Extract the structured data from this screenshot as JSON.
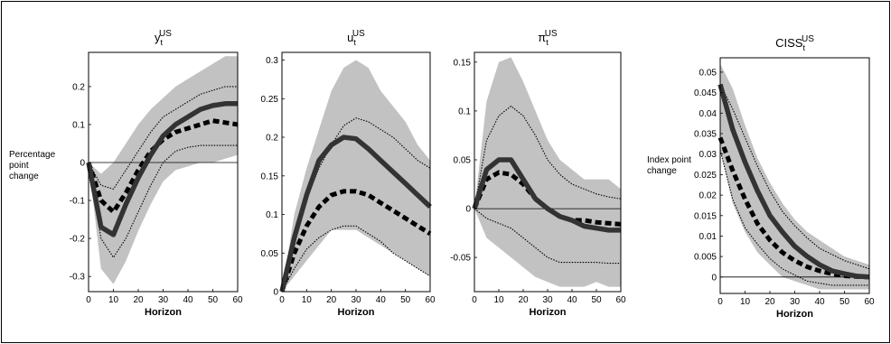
{
  "panel_ylabels": {
    "left": [
      "Percentage",
      "point",
      "change"
    ],
    "right": [
      "Index point",
      "change"
    ]
  },
  "chart_data": [
    {
      "type": "line",
      "title": "y",
      "title_sup": "US",
      "title_sub": "t",
      "xlabel": "Horizon",
      "ylabel": "Percentage point change",
      "xlim": [
        0,
        60
      ],
      "ylim": [
        -0.34,
        0.29
      ],
      "xticks": [
        0,
        10,
        20,
        30,
        40,
        50,
        60
      ],
      "yticks": [
        -0.3,
        -0.2,
        -0.1,
        0,
        0.1,
        0.2
      ],
      "yticklabels": [
        "-0.3",
        "-0.2",
        "-0.1",
        "0",
        "0.1",
        "0.2"
      ],
      "zero_line": true,
      "x": [
        0,
        5,
        10,
        15,
        20,
        25,
        30,
        35,
        40,
        45,
        50,
        55,
        60
      ],
      "series": [
        {
          "role": "band_upper",
          "values": [
            0,
            -0.03,
            0.0,
            0.05,
            0.1,
            0.14,
            0.17,
            0.2,
            0.22,
            0.24,
            0.26,
            0.28,
            0.28
          ]
        },
        {
          "role": "band_lower",
          "values": [
            0,
            -0.28,
            -0.32,
            -0.26,
            -0.18,
            -0.11,
            -0.05,
            -0.02,
            -0.01,
            0.0,
            0.0,
            0.01,
            0.02
          ]
        },
        {
          "role": "ci_upper",
          "values": [
            0,
            -0.06,
            -0.07,
            -0.02,
            0.03,
            0.08,
            0.12,
            0.14,
            0.16,
            0.18,
            0.19,
            0.2,
            0.2
          ]
        },
        {
          "role": "ci_lower",
          "values": [
            0,
            -0.2,
            -0.25,
            -0.2,
            -0.13,
            -0.06,
            0.0,
            0.03,
            0.04,
            0.045,
            0.045,
            0.045,
            0.045
          ]
        },
        {
          "role": "median",
          "values": [
            0,
            -0.17,
            -0.19,
            -0.11,
            -0.04,
            0.02,
            0.07,
            0.1,
            0.12,
            0.14,
            0.15,
            0.155,
            0.155
          ]
        },
        {
          "role": "alt",
          "values": [
            0,
            -0.1,
            -0.13,
            -0.08,
            -0.02,
            0.03,
            0.06,
            0.08,
            0.09,
            0.1,
            0.11,
            0.105,
            0.1
          ]
        }
      ]
    },
    {
      "type": "line",
      "title": "u",
      "title_sup": "US",
      "title_sub": "t",
      "xlabel": "Horizon",
      "ylabel": "",
      "xlim": [
        0,
        60
      ],
      "ylim": [
        0,
        0.31
      ],
      "xticks": [
        0,
        10,
        20,
        30,
        40,
        50,
        60
      ],
      "yticks": [
        0,
        0.05,
        0.1,
        0.15,
        0.2,
        0.25,
        0.3
      ],
      "yticklabels": [
        "0",
        "0.05",
        "0.1",
        "0.15",
        "0.2",
        "0.25",
        "0.3"
      ],
      "zero_line": false,
      "x": [
        0,
        5,
        10,
        15,
        20,
        25,
        30,
        35,
        40,
        45,
        50,
        55,
        60
      ],
      "series": [
        {
          "role": "band_upper",
          "values": [
            0,
            0.1,
            0.16,
            0.21,
            0.26,
            0.29,
            0.3,
            0.29,
            0.26,
            0.24,
            0.22,
            0.19,
            0.17
          ]
        },
        {
          "role": "band_lower",
          "values": [
            0,
            0.02,
            0.04,
            0.06,
            0.08,
            0.08,
            0.08,
            0.07,
            0.06,
            0.05,
            0.04,
            0.03,
            0.02
          ]
        },
        {
          "role": "ci_upper",
          "values": [
            0,
            0.07,
            0.12,
            0.16,
            0.19,
            0.215,
            0.225,
            0.22,
            0.21,
            0.2,
            0.185,
            0.17,
            0.16
          ]
        },
        {
          "role": "ci_lower",
          "values": [
            0,
            0.03,
            0.055,
            0.07,
            0.08,
            0.085,
            0.085,
            0.075,
            0.065,
            0.05,
            0.04,
            0.03,
            0.02
          ]
        },
        {
          "role": "median",
          "values": [
            0,
            0.07,
            0.125,
            0.17,
            0.19,
            0.2,
            0.198,
            0.185,
            0.17,
            0.155,
            0.14,
            0.125,
            0.11
          ]
        },
        {
          "role": "alt",
          "values": [
            0,
            0.05,
            0.085,
            0.11,
            0.125,
            0.13,
            0.13,
            0.125,
            0.115,
            0.105,
            0.095,
            0.085,
            0.075
          ]
        }
      ]
    },
    {
      "type": "line",
      "title": "π",
      "title_sup": "US",
      "title_sub": "t",
      "xlabel": "Horizon",
      "ylabel": "",
      "xlim": [
        0,
        60
      ],
      "ylim": [
        -0.085,
        0.16
      ],
      "xticks": [
        0,
        10,
        20,
        30,
        40,
        50,
        60
      ],
      "yticks": [
        -0.05,
        0,
        0.05,
        0.1,
        0.15
      ],
      "yticklabels": [
        "-0.05",
        "0",
        "0.05",
        "0.1",
        "0.15"
      ],
      "zero_line": true,
      "x": [
        0,
        5,
        10,
        15,
        20,
        25,
        30,
        35,
        40,
        45,
        50,
        55,
        60
      ],
      "series": [
        {
          "role": "band_upper",
          "values": [
            0,
            0.11,
            0.15,
            0.155,
            0.13,
            0.1,
            0.07,
            0.05,
            0.04,
            0.03,
            0.03,
            0.03,
            0.02
          ]
        },
        {
          "role": "band_lower",
          "values": [
            0,
            -0.03,
            -0.04,
            -0.05,
            -0.06,
            -0.07,
            -0.075,
            -0.08,
            -0.08,
            -0.08,
            -0.075,
            -0.08,
            -0.08
          ]
        },
        {
          "role": "ci_upper",
          "values": [
            0,
            0.07,
            0.095,
            0.105,
            0.095,
            0.075,
            0.05,
            0.035,
            0.025,
            0.02,
            0.015,
            0.012,
            0.01
          ]
        },
        {
          "role": "ci_lower",
          "values": [
            0,
            -0.01,
            -0.015,
            -0.02,
            -0.03,
            -0.04,
            -0.05,
            -0.055,
            -0.055,
            -0.055,
            -0.055,
            -0.056,
            -0.056
          ]
        },
        {
          "role": "median",
          "values": [
            0,
            0.04,
            0.05,
            0.05,
            0.03,
            0.01,
            0.0,
            -0.008,
            -0.012,
            -0.018,
            -0.02,
            -0.022,
            -0.022
          ]
        },
        {
          "role": "alt",
          "values": [
            0,
            0.03,
            0.037,
            0.035,
            0.025,
            0.01,
            0.0,
            -0.008,
            -0.012,
            -0.012,
            -0.014,
            -0.015,
            -0.016
          ]
        }
      ]
    },
    {
      "type": "line",
      "title": "CISS",
      "title_sup": "US",
      "title_sub": "t",
      "xlabel": "Horizon",
      "ylabel": "Index point change",
      "xlim": [
        0,
        60
      ],
      "ylim": [
        -0.004,
        0.0535
      ],
      "xticks": [
        0,
        10,
        20,
        30,
        40,
        50,
        60
      ],
      "yticks": [
        0,
        0.005,
        0.01,
        0.015,
        0.02,
        0.025,
        0.03,
        0.035,
        0.04,
        0.045,
        0.05
      ],
      "yticklabels": [
        "0",
        "0.005",
        "0.01",
        "0.015",
        "0.02",
        "0.025",
        "0.03",
        "0.035",
        "0.04",
        "0.045",
        "0.05"
      ],
      "zero_line": true,
      "x": [
        0,
        5,
        10,
        15,
        20,
        25,
        30,
        35,
        40,
        45,
        50,
        55,
        60
      ],
      "series": [
        {
          "role": "band_upper",
          "values": [
            0.052,
            0.046,
            0.037,
            0.029,
            0.023,
            0.018,
            0.014,
            0.011,
            0.009,
            0.007,
            0.005,
            0.004,
            0.003
          ]
        },
        {
          "role": "band_lower",
          "values": [
            0.031,
            0.018,
            0.011,
            0.006,
            0.003,
            0.0,
            -0.001,
            -0.002,
            -0.003,
            -0.003,
            -0.003,
            -0.003,
            -0.003
          ]
        },
        {
          "role": "ci_upper",
          "values": [
            0.047,
            0.041,
            0.034,
            0.027,
            0.021,
            0.016,
            0.0125,
            0.0095,
            0.007,
            0.0055,
            0.004,
            0.003,
            0.002
          ]
        },
        {
          "role": "ci_lower",
          "values": [
            0.031,
            0.019,
            0.012,
            0.008,
            0.0045,
            0.002,
            0.0005,
            -0.001,
            -0.0015,
            -0.002,
            -0.002,
            -0.002,
            -0.002
          ]
        },
        {
          "role": "median",
          "values": [
            0.047,
            0.036,
            0.028,
            0.021,
            0.015,
            0.011,
            0.0075,
            0.005,
            0.003,
            0.0015,
            0.0008,
            0.0002,
            0.0
          ]
        },
        {
          "role": "alt",
          "values": [
            0.034,
            0.026,
            0.019,
            0.013,
            0.009,
            0.006,
            0.004,
            0.0025,
            0.0015,
            0.0008,
            0.0003,
            0.0001,
            0.0
          ]
        }
      ]
    }
  ]
}
